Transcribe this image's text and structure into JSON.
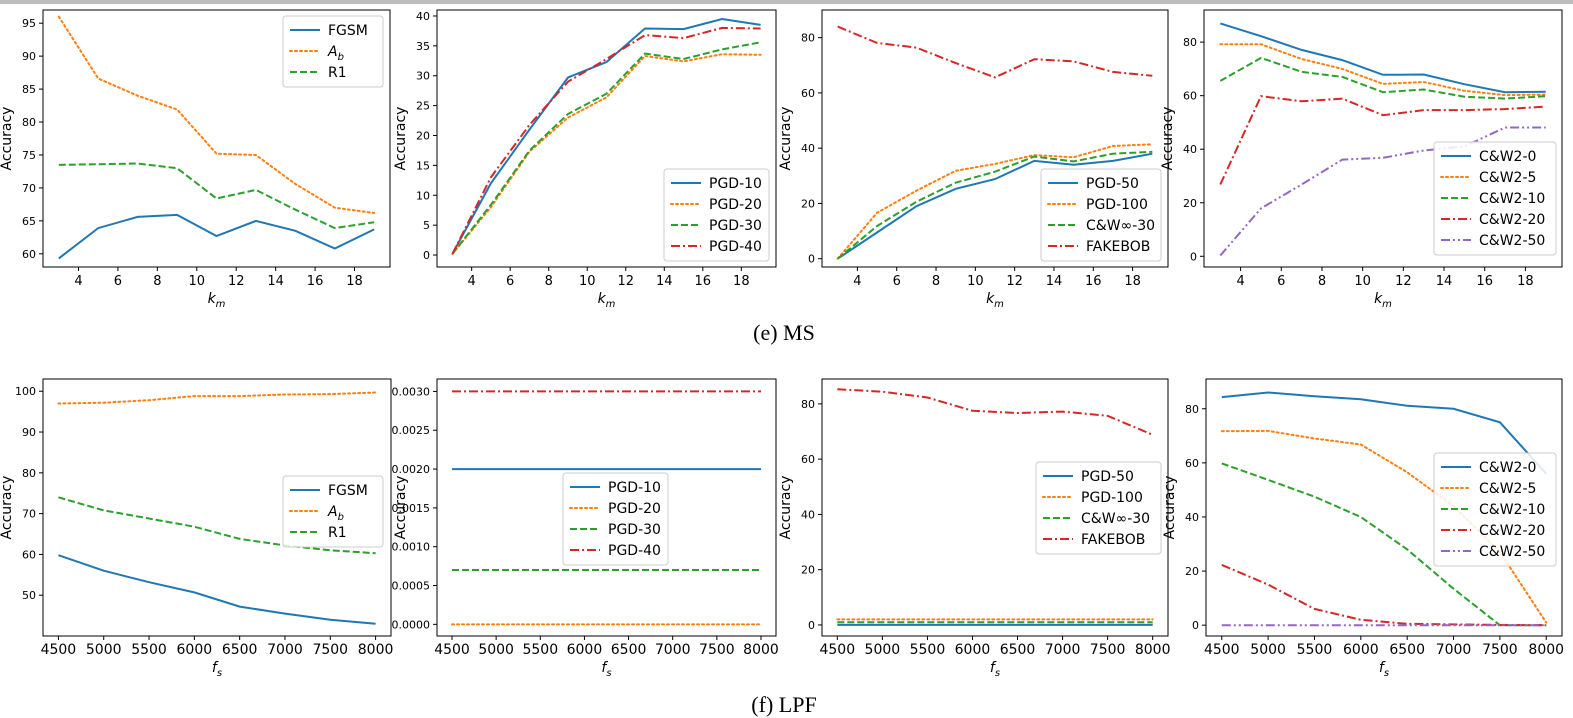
{
  "captions": {
    "ms": "(e)  MS",
    "lpf": "(f)  LPF"
  },
  "colors": {
    "blue": "#1f77b4",
    "orange": "#ff7f0e",
    "green": "#2ca02c",
    "red": "#d62728",
    "purple": "#9467bd"
  },
  "chart_data": [
    {
      "type": "line",
      "ylabel": "Accuracy",
      "xlabel": "k_m",
      "xlim": [
        2.2,
        19.8
      ],
      "ylim": [
        58,
        97
      ],
      "xticks": [
        4,
        6,
        8,
        10,
        12,
        14,
        16,
        18
      ],
      "yticks": [
        60,
        65,
        70,
        75,
        80,
        85,
        90,
        95
      ],
      "legend": "top-right",
      "x": [
        3,
        5,
        7,
        9,
        11,
        13,
        15,
        17,
        19
      ],
      "series": [
        {
          "name": "FGSM",
          "style": "solid",
          "color": "blue",
          "values": [
            59.3,
            63.9,
            65.6,
            65.9,
            62.7,
            65.0,
            63.5,
            60.8,
            63.7
          ]
        },
        {
          "name": "A_b",
          "style": "dotted",
          "color": "orange",
          "values": [
            96.0,
            86.6,
            84.0,
            81.9,
            75.2,
            75.0,
            70.6,
            67.0,
            66.2
          ]
        },
        {
          "name": "R1",
          "style": "dashed",
          "color": "green",
          "values": [
            73.5,
            73.6,
            73.7,
            73.0,
            68.4,
            69.7,
            66.7,
            63.9,
            64.8
          ]
        }
      ]
    },
    {
      "type": "line",
      "ylabel": "Accuracy",
      "xlabel": "k_m",
      "xlim": [
        2.2,
        19.8
      ],
      "ylim": [
        -2,
        41
      ],
      "xticks": [
        4,
        6,
        8,
        10,
        12,
        14,
        16,
        18
      ],
      "yticks": [
        0,
        5,
        10,
        15,
        20,
        25,
        30,
        35,
        40
      ],
      "legend": "bottom-right",
      "x": [
        3,
        5,
        7,
        9,
        11,
        13,
        15,
        17,
        19
      ],
      "series": [
        {
          "name": "PGD-10",
          "style": "solid",
          "color": "blue",
          "values": [
            0.2,
            12.0,
            21.0,
            29.7,
            32.3,
            37.9,
            37.8,
            39.5,
            38.5
          ]
        },
        {
          "name": "PGD-20",
          "style": "dotted",
          "color": "orange",
          "values": [
            0.2,
            8.0,
            17.3,
            23.0,
            26.4,
            33.3,
            32.4,
            33.6,
            33.5
          ]
        },
        {
          "name": "PGD-30",
          "style": "dashed",
          "color": "green",
          "values": [
            0.2,
            8.4,
            17.5,
            23.6,
            27.0,
            33.7,
            32.8,
            34.4,
            35.6
          ]
        },
        {
          "name": "PGD-40",
          "style": "dashdot",
          "color": "red",
          "values": [
            0.2,
            13.0,
            21.8,
            29.0,
            32.8,
            36.8,
            36.3,
            38.0,
            37.9
          ]
        }
      ]
    },
    {
      "type": "line",
      "ylabel": "Accuracy",
      "xlabel": "k_m",
      "xlim": [
        2.2,
        19.8
      ],
      "ylim": [
        -3,
        90
      ],
      "xticks": [
        4,
        6,
        8,
        10,
        12,
        14,
        16,
        18
      ],
      "yticks": [
        0,
        20,
        40,
        60,
        80
      ],
      "legend": "bottom-right",
      "x": [
        3,
        5,
        7,
        9,
        11,
        13,
        15,
        17,
        19
      ],
      "series": [
        {
          "name": "PGD-50",
          "style": "solid",
          "color": "blue",
          "values": [
            0,
            9.5,
            19.0,
            25.3,
            28.8,
            35.4,
            34.0,
            35.4,
            38.0
          ]
        },
        {
          "name": "PGD-100",
          "style": "dotted",
          "color": "orange",
          "values": [
            0,
            16.6,
            24.6,
            31.8,
            34.3,
            37.5,
            36.7,
            40.8,
            41.4
          ]
        },
        {
          "name": "C&W∞-30",
          "style": "dashed",
          "color": "green",
          "values": [
            0,
            11.8,
            20.6,
            27.5,
            31.5,
            37.0,
            35.2,
            38.0,
            38.7
          ]
        },
        {
          "name": "FAKEBOB",
          "style": "dashdot",
          "color": "red",
          "values": [
            84.0,
            78.1,
            76.4,
            70.8,
            65.6,
            72.2,
            71.4,
            67.6,
            66.2
          ]
        }
      ]
    },
    {
      "type": "line",
      "ylabel": "Accuracy",
      "xlabel": "k_m",
      "xlim": [
        2.2,
        19.8
      ],
      "ylim": [
        -4,
        92
      ],
      "xticks": [
        4,
        6,
        8,
        10,
        12,
        14,
        16,
        18
      ],
      "yticks": [
        0,
        20,
        40,
        60,
        80
      ],
      "legend": "bottom-right",
      "x": [
        3,
        5,
        7,
        9,
        11,
        13,
        15,
        17,
        19
      ],
      "series": [
        {
          "name": "C&W2-0",
          "style": "solid",
          "color": "blue",
          "values": [
            87.0,
            82.2,
            77.1,
            73.3,
            67.8,
            67.9,
            64.3,
            61.3,
            61.5
          ]
        },
        {
          "name": "C&W2-5",
          "style": "dotted",
          "color": "orange",
          "values": [
            79.2,
            79.2,
            73.7,
            70.0,
            64.4,
            65.1,
            61.8,
            60.2,
            60.4
          ]
        },
        {
          "name": "C&W2-10",
          "style": "dashed",
          "color": "green",
          "values": [
            65.5,
            74.1,
            68.9,
            67.0,
            61.3,
            62.3,
            59.6,
            58.9,
            59.8
          ]
        },
        {
          "name": "C&W2-20",
          "style": "dashdot",
          "color": "red",
          "values": [
            26.8,
            59.8,
            57.9,
            58.9,
            52.7,
            54.6,
            54.6,
            55.0,
            55.9
          ]
        },
        {
          "name": "C&W2-50",
          "style": "dashdotdot",
          "color": "purple",
          "values": [
            0.3,
            17.9,
            26.8,
            36.1,
            36.8,
            39.5,
            41.0,
            48.1,
            48.1
          ]
        }
      ]
    },
    {
      "type": "line",
      "ylabel": "Accuracy",
      "xlabel": "f_s",
      "xlim": [
        4330,
        8170
      ],
      "ylim": [
        40,
        103
      ],
      "xticks": [
        4500,
        5000,
        5500,
        6000,
        6500,
        7000,
        7500,
        8000
      ],
      "yticks": [
        50,
        60,
        70,
        80,
        90,
        100
      ],
      "legend": "center-right",
      "x": [
        4500,
        5000,
        5500,
        6000,
        6500,
        7000,
        7500,
        8000
      ],
      "series": [
        {
          "name": "FGSM",
          "style": "solid",
          "color": "blue",
          "values": [
            59.8,
            56.0,
            53.2,
            50.7,
            47.2,
            45.5,
            44.0,
            43.0
          ]
        },
        {
          "name": "A_b",
          "style": "dotted",
          "color": "orange",
          "values": [
            97.0,
            97.2,
            97.8,
            98.8,
            98.8,
            99.2,
            99.3,
            99.7
          ]
        },
        {
          "name": "R1",
          "style": "dashed",
          "color": "green",
          "values": [
            74.0,
            70.8,
            68.8,
            66.8,
            63.8,
            62.2,
            61.0,
            60.3
          ]
        }
      ]
    },
    {
      "type": "line",
      "ylabel": "Accuracy",
      "xlabel": "f_s",
      "xlim": [
        4330,
        8170
      ],
      "ylim": [
        -0.00015,
        0.00316
      ],
      "xticks": [
        4500,
        5000,
        5500,
        6000,
        6500,
        7000,
        7500,
        8000
      ],
      "yticks": [
        0,
        0.0005,
        0.001,
        0.0015,
        0.002,
        0.0025,
        0.003
      ],
      "ytick_labels": [
        "0.0000",
        "0.0005",
        "0.0010",
        "0.0015",
        "0.0020",
        "0.0025",
        "0.0030"
      ],
      "legend": "center",
      "x": [
        4500,
        5000,
        5500,
        6000,
        6500,
        7000,
        7500,
        8000
      ],
      "series": [
        {
          "name": "PGD-10",
          "style": "solid",
          "color": "blue",
          "values": [
            0.002,
            0.002,
            0.002,
            0.002,
            0.002,
            0.002,
            0.002,
            0.002
          ]
        },
        {
          "name": "PGD-20",
          "style": "dotted",
          "color": "orange",
          "values": [
            0,
            0,
            0,
            0,
            0,
            0,
            0,
            0
          ]
        },
        {
          "name": "PGD-30",
          "style": "dashed",
          "color": "green",
          "values": [
            0.0007,
            0.0007,
            0.0007,
            0.0007,
            0.0007,
            0.0007,
            0.0007,
            0.0007
          ]
        },
        {
          "name": "PGD-40",
          "style": "dashdot",
          "color": "red",
          "values": [
            0.003,
            0.003,
            0.003,
            0.003,
            0.003,
            0.003,
            0.003,
            0.003
          ]
        }
      ]
    },
    {
      "type": "line",
      "ylabel": "Accuracy",
      "xlabel": "f_s",
      "xlim": [
        4330,
        8170
      ],
      "ylim": [
        -4,
        89
      ],
      "xticks": [
        4500,
        5000,
        5500,
        6000,
        6500,
        7000,
        7500,
        8000
      ],
      "yticks": [
        0,
        20,
        40,
        60,
        80
      ],
      "legend": "center-right",
      "x": [
        4500,
        5000,
        5500,
        6000,
        6500,
        7000,
        7500,
        8000
      ],
      "series": [
        {
          "name": "PGD-50",
          "style": "solid",
          "color": "blue",
          "values": [
            0,
            0,
            0,
            0,
            0,
            0,
            0,
            0
          ]
        },
        {
          "name": "PGD-100",
          "style": "dotted",
          "color": "orange",
          "values": [
            2,
            2,
            2,
            2,
            2,
            2,
            2,
            2
          ]
        },
        {
          "name": "C&W∞-30",
          "style": "dashed",
          "color": "green",
          "values": [
            1,
            1,
            1,
            1,
            1,
            1,
            1,
            1
          ]
        },
        {
          "name": "FAKEBOB",
          "style": "dashdot",
          "color": "red",
          "values": [
            85.3,
            84.4,
            82.3,
            77.5,
            76.7,
            77.2,
            75.7,
            68.8
          ]
        }
      ]
    },
    {
      "type": "line",
      "ylabel": "Accuracy",
      "xlabel": "f_s",
      "xlim": [
        4330,
        8170
      ],
      "ylim": [
        -4,
        91
      ],
      "xticks": [
        4500,
        5000,
        5500,
        6000,
        6500,
        7000,
        7500,
        8000
      ],
      "yticks": [
        0,
        20,
        40,
        60,
        80
      ],
      "xtick_labels": [
        "4500",
        "5000",
        "5500",
        "6000",
        "6500",
        "7000",
        "7500",
        "8000"
      ],
      "legend": "center-right",
      "x": [
        4500,
        5000,
        5500,
        6000,
        6500,
        7000,
        7500,
        8000
      ],
      "series": [
        {
          "name": "C&W2-0",
          "style": "solid",
          "color": "blue",
          "values": [
            84.3,
            86.0,
            84.6,
            83.5,
            81.1,
            80.0,
            75.0,
            56.0
          ]
        },
        {
          "name": "C&W2-5",
          "style": "dotted",
          "color": "orange",
          "values": [
            71.7,
            71.8,
            69.0,
            66.8,
            56.5,
            44.0,
            27.0,
            1.0
          ]
        },
        {
          "name": "C&W2-10",
          "style": "dashed",
          "color": "green",
          "values": [
            59.8,
            53.7,
            47.5,
            40.0,
            28.0,
            13.5,
            0,
            0
          ]
        },
        {
          "name": "C&W2-20",
          "style": "dashdot",
          "color": "red",
          "values": [
            22.3,
            15.0,
            6.0,
            2.0,
            0.5,
            0.3,
            0.1,
            0
          ]
        },
        {
          "name": "C&W2-50",
          "style": "dashdotdot",
          "color": "purple",
          "values": [
            0,
            0,
            0,
            0,
            0,
            0,
            0,
            0
          ]
        }
      ]
    }
  ]
}
